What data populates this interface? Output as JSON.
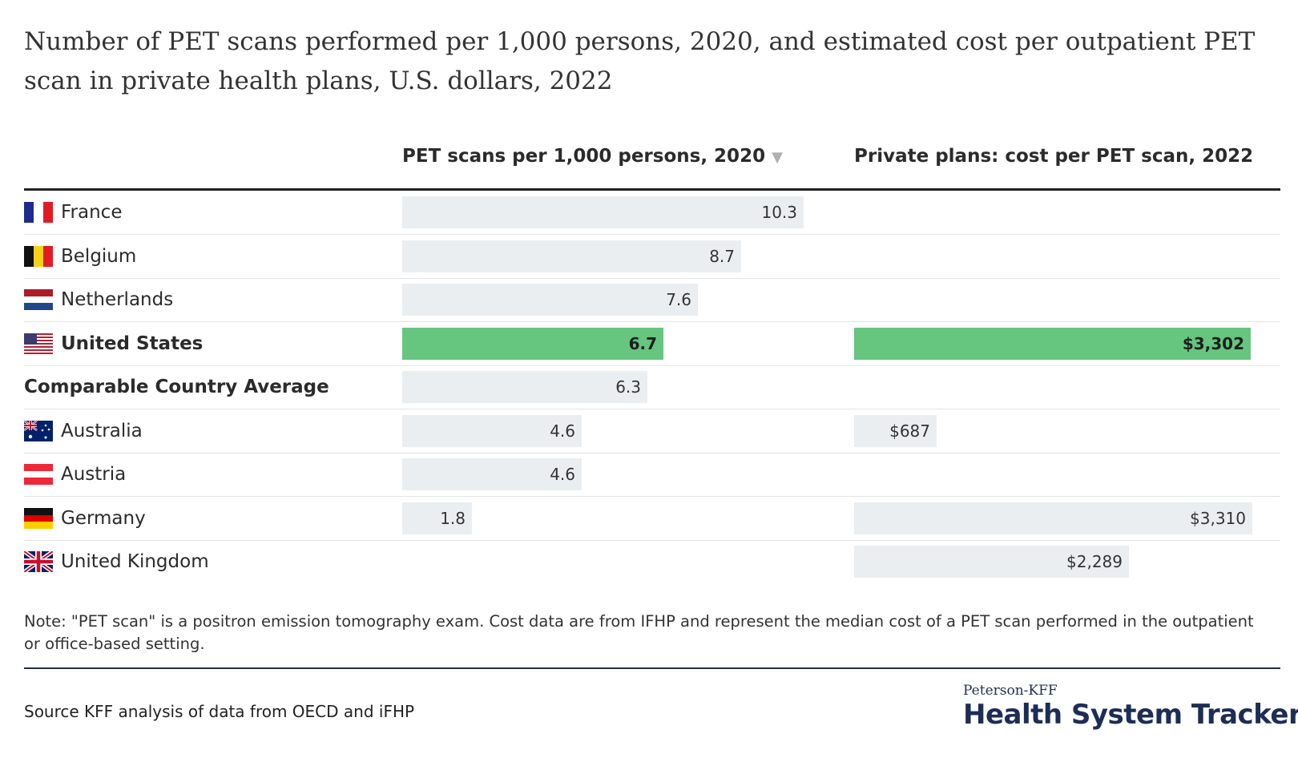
{
  "title": "Number of PET scans performed per 1,000 persons, 2020, and estimated cost per outpatient PET scan in private health plans, U.S. dollars, 2022",
  "columns": {
    "scans_header": "PET scans per 1,000 persons, 2020",
    "scans_sort_icon": "▼",
    "cost_header": "Private plans: cost per PET scan, 2022"
  },
  "colors": {
    "default_bar": "#ebeef0",
    "us_bar": "#66c57f",
    "average_bar": "#198ccf",
    "brand_navy": "#1d2d55"
  },
  "chart_data": {
    "type": "bar",
    "categories": [
      "France",
      "Belgium",
      "Netherlands",
      "United States",
      "Comparable Country Average",
      "Australia",
      "Austria",
      "Germany",
      "United Kingdom"
    ],
    "series": [
      {
        "name": "PET scans per 1,000 persons, 2020",
        "values": [
          10.3,
          8.7,
          7.6,
          6.7,
          6.3,
          4.6,
          4.6,
          1.8,
          null
        ],
        "labels": [
          "10.3",
          "8.7",
          "7.6",
          "6.7",
          "6.3",
          "4.6",
          "4.6",
          "1.8",
          ""
        ]
      },
      {
        "name": "Private plans: cost per PET scan, 2022",
        "values": [
          null,
          null,
          null,
          3302,
          null,
          687,
          null,
          3310,
          2289
        ],
        "labels": [
          "",
          "",
          "",
          "$3,302",
          "",
          "$687",
          "",
          "$3,310",
          "$2,289"
        ]
      }
    ],
    "highlight": {
      "United States": "us",
      "Comparable Country Average": "average"
    }
  },
  "rows": [
    {
      "label": "France",
      "flag": "flag-france-icon",
      "bold": false
    },
    {
      "label": "Belgium",
      "flag": "flag-belgium-icon",
      "bold": false
    },
    {
      "label": "Netherlands",
      "flag": "flag-netherlands-icon",
      "bold": false
    },
    {
      "label": "United States",
      "flag": "flag-us-icon",
      "bold": true
    },
    {
      "label": "Comparable Country Average",
      "flag": null,
      "bold": true
    },
    {
      "label": "Australia",
      "flag": "flag-australia-icon",
      "bold": false
    },
    {
      "label": "Austria",
      "flag": "flag-austria-icon",
      "bold": false
    },
    {
      "label": "Germany",
      "flag": "flag-germany-icon",
      "bold": false
    },
    {
      "label": "United Kingdom",
      "flag": "flag-uk-icon",
      "bold": false
    }
  ],
  "note": "Note: \"PET scan\" is a positron emission tomography exam. Cost data are from IFHP and represent the median cost of a PET scan performed in the outpatient or office-based setting.",
  "source": "Source KFF analysis of data from OECD and iFHP",
  "brand": {
    "small": "Peterson-KFF",
    "big": "Health System Tracker"
  }
}
